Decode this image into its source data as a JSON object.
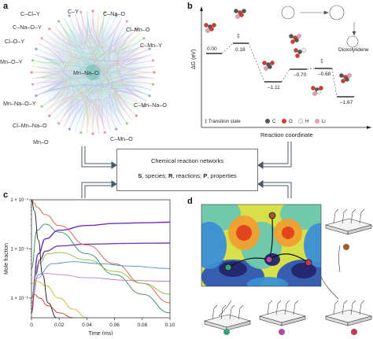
{
  "panel_labels": {
    "a": "a",
    "b": "b",
    "c": "c",
    "d": "d"
  },
  "network": {
    "labels": [
      "C–Y",
      "C–Cl–Y",
      "C–Na–O",
      "C–Na–O–Y",
      "Cl–Mn–O",
      "Cl–O–Y",
      "C–Mn–Y",
      "Mn–O–Y",
      "Mn–Na–O",
      "Mn–Na–O–Y",
      "C–Mn–Na–O",
      "Cl–Mn–Na–O",
      "C–Mn–O",
      "Mn–O"
    ]
  },
  "energy_diagram": {
    "y_axis_label": "ΔG (eV)",
    "x_axis_label": "Reaction coordinate",
    "values": [
      "0.00",
      "0.18",
      "–1.11",
      "–0.70",
      "–0.68",
      "–1.67"
    ],
    "ts_symbols": [
      "‡",
      "‡"
    ],
    "product_label": "Dioxolylidene",
    "legend": [
      "‡ Transition state",
      "C",
      "O",
      "H",
      "Li"
    ],
    "colors": {
      "C": "#555555",
      "O": "#d63b2f",
      "H": "#f0f0f0",
      "Li": "#e8a0b0"
    }
  },
  "center_box": {
    "title": "Chemical reaction networks",
    "subtitle_parts": [
      "S",
      ", species; ",
      "R",
      ", reactions; ",
      "P",
      ", properties"
    ]
  },
  "chart_data": {
    "type": "line",
    "xlabel": "Time (ms)",
    "ylabel": "Mole fraction",
    "x_ticks": [
      "0",
      "0.02",
      "0.04",
      "0.06",
      "0.08",
      "0.10"
    ],
    "y_ticks": [
      "1 × 10⁻⁴",
      "1 × 10⁻⁵",
      "1 × 10⁻⁶"
    ],
    "xlim": [
      0,
      0.1
    ],
    "ylim_log10": [
      -6.4,
      -4
    ],
    "series": [
      {
        "color": "#6a2fc0",
        "x": [
          0,
          0.005,
          0.01,
          0.02,
          0.04,
          0.06,
          0.08,
          0.1
        ],
        "y": [
          1e-06,
          8e-06,
          1.6e-05,
          2.4e-05,
          3e-05,
          3.3e-05,
          3.4e-05,
          3.5e-05
        ]
      },
      {
        "color": "#7a3fb0",
        "x": [
          0,
          0.003,
          0.006,
          0.01,
          0.02,
          0.04,
          0.07,
          0.1
        ],
        "y": [
          5e-07,
          3e-06,
          6e-06,
          9e-06,
          1.15e-05,
          1.25e-05,
          1.3e-05,
          1.32e-05
        ]
      },
      {
        "color": "#d95b43",
        "x": [
          0,
          0.002,
          0.004,
          0.01,
          0.02,
          0.04,
          0.06,
          0.08,
          0.1
        ],
        "y": [
          0.0001,
          8.5e-05,
          7e-05,
          5e-05,
          3e-05,
          1.2e-05,
          5e-06,
          2e-06,
          8e-07
        ]
      },
      {
        "color": "#2f8f5b",
        "x": [
          0,
          0.004,
          0.01,
          0.02,
          0.04,
          0.06,
          0.08,
          0.1
        ],
        "y": [
          4e-06,
          2.4e-05,
          3.2e-05,
          2.2e-05,
          8e-06,
          3e-06,
          1.2e-06,
          5e-07
        ]
      },
      {
        "color": "#8bbf3a",
        "x": [
          0,
          0.005,
          0.012,
          0.02,
          0.04,
          0.06,
          0.08,
          0.1
        ],
        "y": [
          1e-06,
          5e-06,
          8e-06,
          8.5e-06,
          6e-06,
          3.5e-06,
          2e-06,
          1.2e-06
        ]
      },
      {
        "color": "#4a8fd0",
        "x": [
          0,
          0.005,
          0.015,
          0.03,
          0.05,
          0.07,
          0.1
        ],
        "y": [
          8e-07,
          3e-06,
          5e-06,
          5.5e-06,
          5e-06,
          4.5e-06,
          4e-06
        ]
      },
      {
        "color": "#b57fd6",
        "x": [
          0,
          0.004,
          0.01,
          0.02,
          0.04,
          0.07,
          0.1
        ],
        "y": [
          8e-07,
          2.5e-06,
          3.2e-06,
          3e-06,
          2.6e-06,
          2.3e-06,
          2.2e-06
        ]
      },
      {
        "color": "#e0b030",
        "x": [
          0,
          0.004,
          0.01,
          0.02,
          0.03,
          0.04
        ],
        "y": [
          2e-06,
          2.2e-06,
          1.8e-06,
          1e-06,
          6e-07,
          4e-07
        ]
      },
      {
        "color": "#1a1a1a",
        "x": [
          0,
          0.002,
          0.005,
          0.008,
          0.012,
          0.018
        ],
        "y": [
          0.0001,
          6e-05,
          1.5e-05,
          3e-06,
          8e-07,
          4e-07
        ]
      },
      {
        "color": "#c0392b",
        "x": [
          0,
          0.002,
          0.006,
          0.012,
          0.02,
          0.03
        ],
        "y": [
          5e-07,
          1.2e-06,
          1e-06,
          7e-07,
          5e-07,
          4e-07
        ]
      }
    ]
  },
  "surface_colors": [
    "#24246b",
    "#2f56b5",
    "#3a8fd6",
    "#6cc7b0",
    "#d7e04a",
    "#f0a030",
    "#e0401f"
  ]
}
